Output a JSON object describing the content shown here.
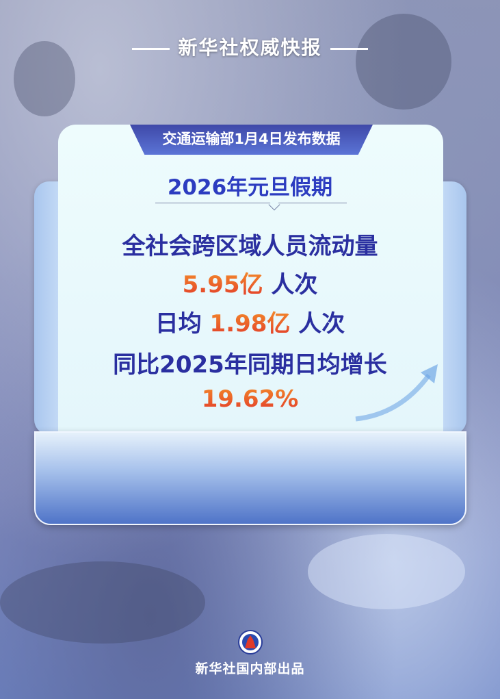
{
  "header": {
    "title": "新华社权威快报"
  },
  "badge": {
    "text": "交通运输部1月4日发布数据"
  },
  "title": "2026年元旦假期",
  "stats": {
    "line1": "全社会跨区域人员流动量",
    "total_value": "5.95亿",
    "total_unit": "人次",
    "daily_prefix": "日均",
    "daily_value": "1.98亿",
    "daily_unit": "人次",
    "compare_text": "同比2025年同期日均增长",
    "growth": "19.62%"
  },
  "footer": {
    "text": "新华社国内部出品",
    "logo": "xinhua-logo"
  },
  "colors": {
    "accent_blue": "#2c3cc0",
    "highlight_orange": "#e8502a",
    "badge": "#4a58b8"
  }
}
